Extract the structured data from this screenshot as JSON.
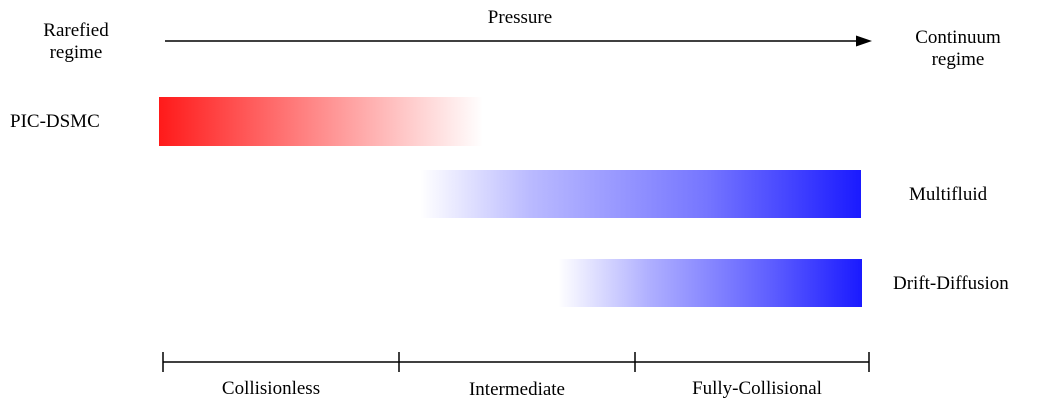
{
  "axis": {
    "left_label_line1": "Rarefied",
    "left_label_line2": "regime",
    "title": "Pressure",
    "right_label_line1": "Continuum",
    "right_label_line2": "regime"
  },
  "methods": [
    {
      "label": "PIC-DSMC",
      "color": "#ff1a1a",
      "fade": "right"
    },
    {
      "label": "Multifluid",
      "color": "#1a1aff",
      "fade": "left"
    },
    {
      "label": "Drift-Diffusion",
      "color": "#1a1aff",
      "fade": "left"
    }
  ],
  "regimes": {
    "collisionless": "Collisionless",
    "intermediate": "Intermediate",
    "fully_collisional": "Fully-Collisional"
  }
}
